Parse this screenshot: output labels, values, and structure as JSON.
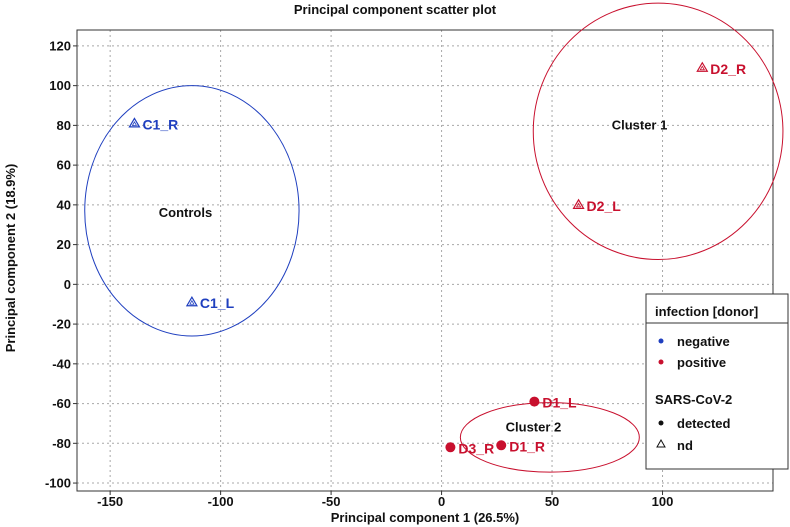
{
  "chart_data": {
    "type": "scatter",
    "title": "Principal component scatter plot",
    "xlabel": "Principal component 1 (26.5%)",
    "ylabel": "Principal component 2 (18.9%)",
    "xlim": [
      -165,
      150
    ],
    "ylim": [
      -104,
      128
    ],
    "xticks": [
      -150,
      -100,
      -50,
      0,
      50,
      100
    ],
    "yticks": [
      120,
      100,
      80,
      60,
      40,
      20,
      0,
      -20,
      -40,
      -60,
      -80,
      -100
    ],
    "grid": true,
    "colors": {
      "negative": "#1f3fbf",
      "positive": "#c8102e"
    },
    "points": [
      {
        "label": "C1_R",
        "x": -139,
        "y": 81,
        "infection": "negative",
        "sars_cov_2": "nd"
      },
      {
        "label": "C1_L",
        "x": -113,
        "y": -9,
        "infection": "negative",
        "sars_cov_2": "nd"
      },
      {
        "label": "D2_R",
        "x": 118,
        "y": 109,
        "infection": "positive",
        "sars_cov_2": "nd"
      },
      {
        "label": "D2_L",
        "x": 62,
        "y": 40,
        "infection": "positive",
        "sars_cov_2": "nd"
      },
      {
        "label": "D1_L",
        "x": 42,
        "y": -59,
        "infection": "positive",
        "sars_cov_2": "detected"
      },
      {
        "label": "D1_R",
        "x": 27,
        "y": -81,
        "infection": "positive",
        "sars_cov_2": "detected"
      },
      {
        "label": "D3_R",
        "x": 4,
        "y": -82,
        "infection": "positive",
        "sars_cov_2": "detected"
      }
    ],
    "ellipses": [
      {
        "label": "Controls",
        "cx": -113,
        "cy": 37,
        "rx": 48.5,
        "ry": 63,
        "group": "negative",
        "label_x": -128,
        "label_y": 34
      },
      {
        "label": "Cluster 1",
        "cx": 98,
        "cy": 77,
        "rx": 56.5,
        "ry": 64.5,
        "group": "positive",
        "label_x": 77,
        "label_y": 78
      },
      {
        "label": "Cluster 2",
        "cx": 49,
        "cy": -77,
        "rx": 40.5,
        "ry": 17.5,
        "group": "positive",
        "label_x": 29,
        "label_y": -74
      }
    ],
    "legend": {
      "position": "bottom-right",
      "title": "infection [donor]",
      "items": [
        {
          "label": "negative",
          "group": "negative"
        },
        {
          "label": "positive",
          "group": "positive"
        }
      ],
      "subtitle": "SARS-CoV-2",
      "marker_items": [
        {
          "label": "detected",
          "marker": "dot"
        },
        {
          "label": "nd",
          "marker": "triangle"
        }
      ]
    }
  }
}
